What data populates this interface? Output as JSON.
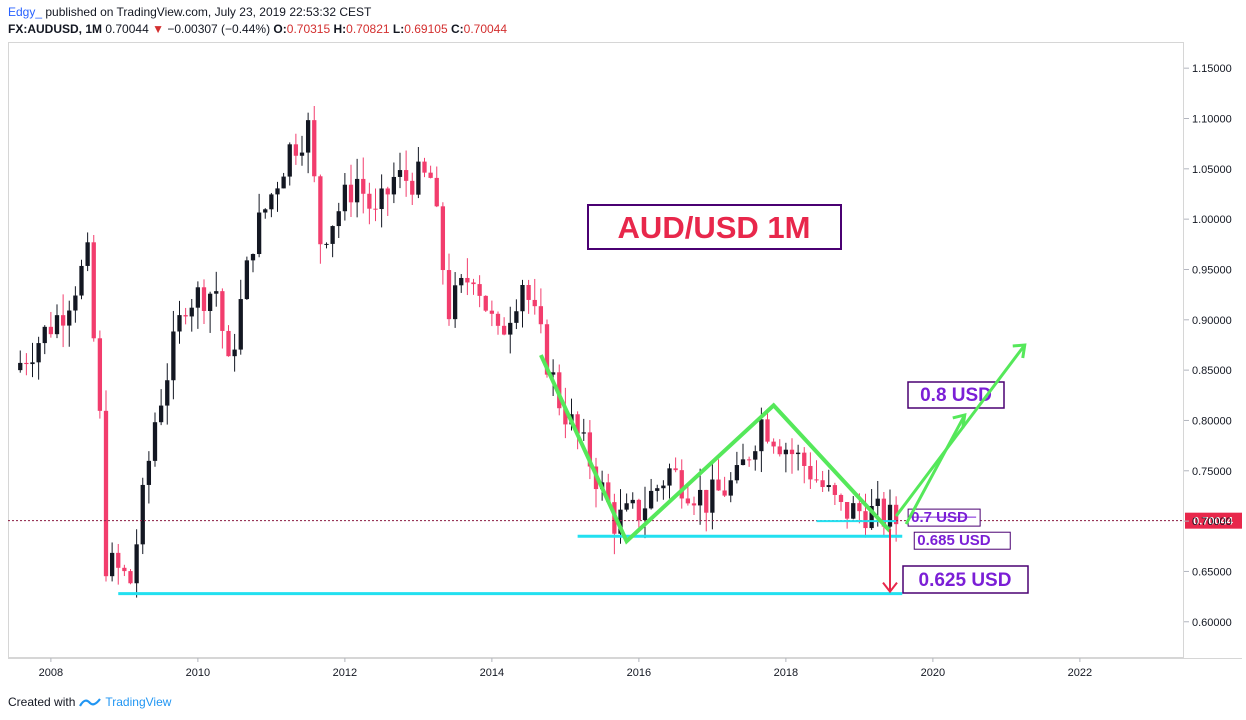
{
  "header": {
    "author": "Edgy_",
    "published": "published on TradingView.com, July 23, 2019 22:53:32 CEST",
    "symbol": "FX:AUDUSD, 1M",
    "last": "0.70044",
    "change_arrow": "▼",
    "change": "−0.00307 (−0.44%)",
    "o_label": "O:",
    "o": "0.70315",
    "h_label": "H:",
    "h": "0.70821",
    "l_label": "L:",
    "l": "0.69105",
    "c_label": "C:",
    "c": "0.70044"
  },
  "footer": {
    "created_with": "Created with",
    "brand": "TradingView"
  },
  "colors": {
    "up": "#131722",
    "down": "#f23d6d",
    "trend": "#55e85a",
    "level": "#22e0f0",
    "arrow_down": "#e8274b",
    "label_text": "#7b1fd6",
    "title_text": "#e8274b",
    "price_line": "#8b1a40"
  },
  "chart_data": {
    "type": "candlestick",
    "title": "AUD/USD 1M",
    "symbol": "FX:AUDUSD",
    "interval": "1M",
    "x_axis": {
      "type": "date",
      "ticks": [
        "2008",
        "2010",
        "2012",
        "2014",
        "2016",
        "2018",
        "2020",
        "2022"
      ],
      "range": [
        "2007-06",
        "2023-06"
      ]
    },
    "y_axis": {
      "ticks": [
        "0.60000",
        "0.65000",
        "0.70000",
        "0.75000",
        "0.80000",
        "0.85000",
        "0.90000",
        "0.95000",
        "1.00000",
        "1.05000",
        "1.10000",
        "1.15000"
      ],
      "range": [
        0.565,
        1.175
      ]
    },
    "current_price": {
      "value": 0.70044,
      "label": "0.70044"
    },
    "close_path": [
      [
        "2007-07",
        0.85
      ],
      [
        "2007-11",
        0.88
      ],
      [
        "2008-03",
        0.91
      ],
      [
        "2008-07",
        0.96
      ],
      [
        "2008-09",
        0.8
      ],
      [
        "2008-10",
        0.66
      ],
      [
        "2009-02",
        0.64
      ],
      [
        "2009-06",
        0.8
      ],
      [
        "2009-11",
        0.92
      ],
      [
        "2010-04",
        0.93
      ],
      [
        "2010-06",
        0.85
      ],
      [
        "2010-10",
        0.98
      ],
      [
        "2011-04",
        1.07
      ],
      [
        "2011-07",
        1.09
      ],
      [
        "2011-09",
        0.98
      ],
      [
        "2012-03",
        1.04
      ],
      [
        "2012-06",
        1.0
      ],
      [
        "2012-09",
        1.04
      ],
      [
        "2013-03",
        1.04
      ],
      [
        "2013-06",
        0.91
      ],
      [
        "2013-10",
        0.95
      ],
      [
        "2014-02",
        0.88
      ],
      [
        "2014-06",
        0.94
      ],
      [
        "2014-12",
        0.82
      ],
      [
        "2015-05",
        0.76
      ],
      [
        "2015-09",
        0.7
      ],
      [
        "2016-01",
        0.71
      ],
      [
        "2016-06",
        0.75
      ],
      [
        "2016-12",
        0.72
      ],
      [
        "2017-05",
        0.74
      ],
      [
        "2017-09",
        0.8
      ],
      [
        "2017-12",
        0.78
      ],
      [
        "2018-05",
        0.75
      ],
      [
        "2018-10",
        0.71
      ],
      [
        "2019-02",
        0.71
      ],
      [
        "2019-07",
        0.7
      ]
    ],
    "annotations": [
      {
        "type": "text",
        "text": "AUD/USD 1M"
      },
      {
        "type": "level",
        "price": 0.685,
        "from": "2015-03",
        "to": "2019-08",
        "label": "0.685 USD"
      },
      {
        "type": "level",
        "price": 0.628,
        "from": "2008-12",
        "to": "2019-08"
      },
      {
        "type": "level",
        "price": 0.7,
        "from": "2018-06",
        "to": "2019-07",
        "label": "0.7 USD"
      },
      {
        "type": "label",
        "text": "0.8 USD"
      },
      {
        "type": "label",
        "text": "0.625 USD"
      },
      {
        "type": "pattern",
        "name": "double top (M)",
        "points": [
          [
            "2014-09",
            0.865
          ],
          [
            "2015-11",
            0.68
          ],
          [
            "2017-11",
            0.815
          ],
          [
            "2019-06",
            0.69
          ]
        ]
      },
      {
        "type": "arrow",
        "direction": "up",
        "points": [
          [
            "2019-07",
            0.705
          ],
          [
            "2021-04",
            0.875
          ]
        ]
      },
      {
        "type": "arrow",
        "direction": "down",
        "points": [
          [
            "2019-06",
            0.692
          ],
          [
            "2019-06",
            0.63
          ]
        ]
      }
    ]
  }
}
